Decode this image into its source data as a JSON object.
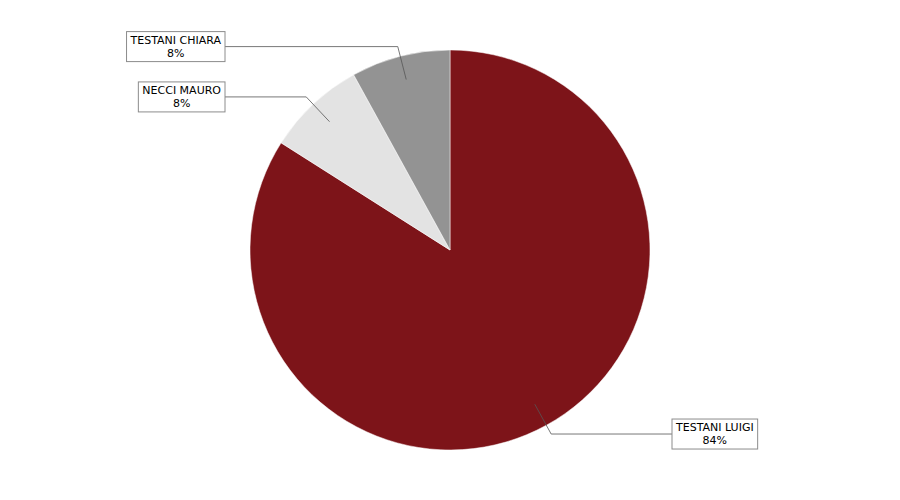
{
  "chart_data": {
    "type": "pie",
    "categories": [
      "TESTANI LUIGI",
      "NECCI MAURO",
      "TESTANI CHIARA"
    ],
    "values": [
      84,
      8,
      8
    ],
    "value_labels": [
      "84%",
      "8%",
      "8%"
    ],
    "colors": [
      "#7d1419",
      "#e3e3e3",
      "#939393"
    ],
    "data_labels": true
  }
}
